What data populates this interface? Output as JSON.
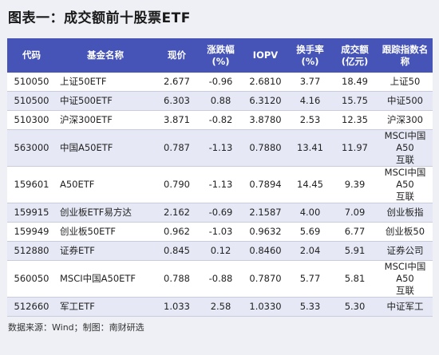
{
  "title": "图表一：成交额前十股票ETF",
  "headers": [
    "代码",
    "基金名称",
    "现价",
    "涨跌幅\n(%)",
    "IOPV",
    "换手率\n(%)",
    "成交额\n(亿元)",
    "跟踪指数名称"
  ],
  "rows": [
    {
      "code": "510050",
      "name": "上证50ETF",
      "price": "2.677",
      "change": "-0.96",
      "iopv": "2.6810",
      "turnover": "3.77",
      "amount": "18.49",
      "index": "上证50"
    },
    {
      "code": "510500",
      "name": "中证500ETF",
      "price": "6.303",
      "change": "0.88",
      "iopv": "6.3120",
      "turnover": "4.16",
      "amount": "15.75",
      "index": "中证500"
    },
    {
      "code": "510300",
      "name": "沪深300ETF",
      "price": "3.871",
      "change": "-0.82",
      "iopv": "3.8780",
      "turnover": "2.53",
      "amount": "12.35",
      "index": "沪深300"
    },
    {
      "code": "563000",
      "name": "中国A50ETF",
      "price": "0.787",
      "change": "-1.13",
      "iopv": "0.7880",
      "turnover": "13.41",
      "amount": "11.97",
      "index": "MSCI中国A50\n互联"
    },
    {
      "code": "159601",
      "name": "A50ETF",
      "price": "0.790",
      "change": "-1.13",
      "iopv": "0.7894",
      "turnover": "14.45",
      "amount": "9.39",
      "index": "MSCI中国A50\n互联"
    },
    {
      "code": "159915",
      "name": "创业板ETF易方达",
      "price": "2.162",
      "change": "-0.69",
      "iopv": "2.1587",
      "turnover": "4.00",
      "amount": "7.09",
      "index": "创业板指"
    },
    {
      "code": "159949",
      "name": "创业板50ETF",
      "price": "0.962",
      "change": "-1.03",
      "iopv": "0.9632",
      "turnover": "5.69",
      "amount": "6.77",
      "index": "创业板50"
    },
    {
      "code": "512880",
      "name": "证券ETF",
      "price": "0.845",
      "change": "0.12",
      "iopv": "0.8460",
      "turnover": "2.04",
      "amount": "5.91",
      "index": "证券公司"
    },
    {
      "code": "560050",
      "name": "MSCI中国A50ETF",
      "price": "0.788",
      "change": "-0.88",
      "iopv": "0.7870",
      "turnover": "5.77",
      "amount": "5.81",
      "index": "MSCI中国A50\n互联"
    },
    {
      "code": "512660",
      "name": "军工ETF",
      "price": "1.033",
      "change": "2.58",
      "iopv": "1.0330",
      "turnover": "5.33",
      "amount": "5.30",
      "index": "中证军工"
    }
  ],
  "footer": "数据来源：Wind；制图：南财研选",
  "colors": {
    "header_bg": "#4654b8",
    "stripe": "#e6e9f5"
  }
}
